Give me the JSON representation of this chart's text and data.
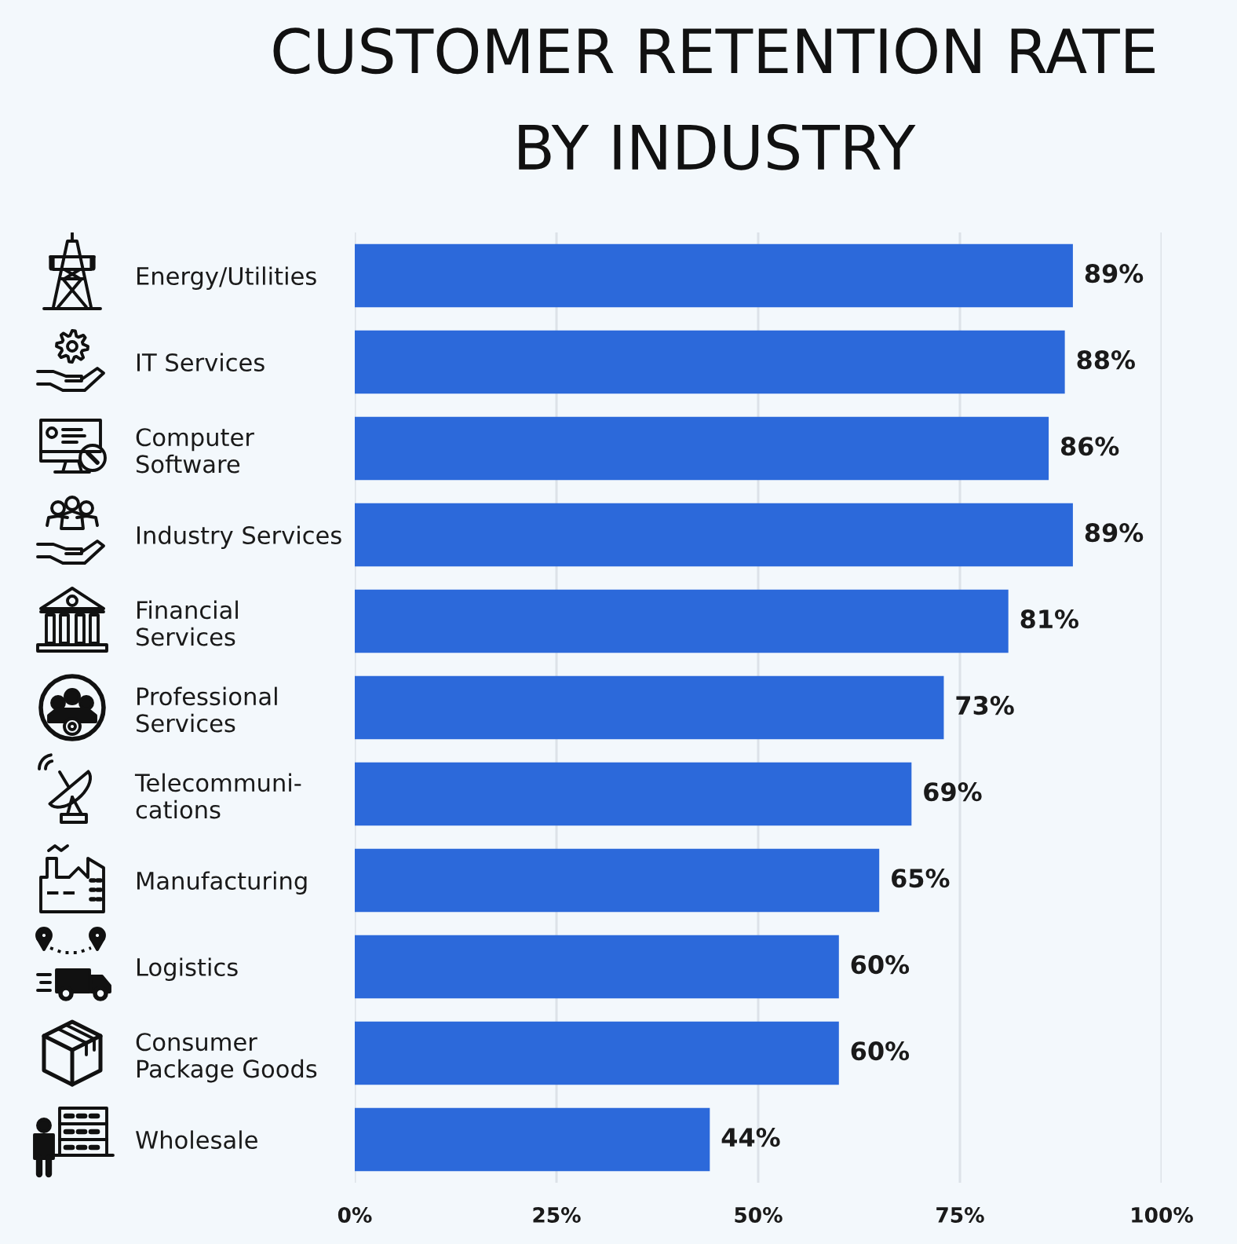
{
  "chart_data": {
    "type": "bar",
    "orientation": "horizontal",
    "title": "CUSTOMER RETENTION RATE\nBY INDUSTRY",
    "categories": [
      "Energy/Utilities",
      "IT Services",
      "Computer\nSoftware",
      "Industry Services",
      "Financial\nServices",
      "Professional\nServices",
      "Telecommuni-\ncations",
      "Manufacturing",
      "Logistics",
      "Consumer\nPackage Goods",
      "Wholesale"
    ],
    "values": [
      89,
      88,
      86,
      89,
      81,
      73,
      69,
      65,
      60,
      60,
      44
    ],
    "color": "#2c69da",
    "value_labels": [
      "89%",
      "88%",
      "86%",
      "89%",
      "81%",
      "73%",
      "69%",
      "65%",
      "60%",
      "60%",
      "44%"
    ],
    "xlim": [
      0,
      100
    ],
    "xticks": [
      {
        "value": 0,
        "label": "0%"
      },
      {
        "value": 25,
        "label": "25%"
      },
      {
        "value": 50,
        "label": "50%"
      },
      {
        "value": 75,
        "label": "75%"
      },
      {
        "value": 100,
        "label": "100%"
      }
    ],
    "grid": "x"
  }
}
